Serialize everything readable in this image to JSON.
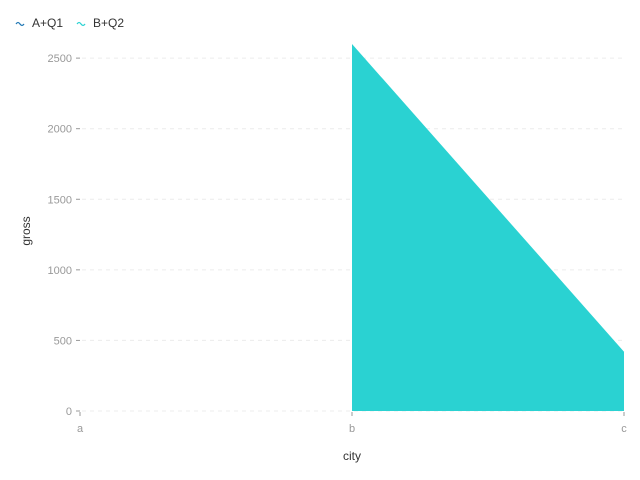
{
  "chart_data": {
    "type": "area",
    "categories": [
      "a",
      "b",
      "c"
    ],
    "series": [
      {
        "name": "A+Q1",
        "values": [
          null,
          null,
          null
        ],
        "color": "#1f77b4"
      },
      {
        "name": "B+Q2",
        "values": [
          null,
          2600,
          420
        ],
        "color": "#2ad2d2"
      }
    ],
    "xlabel": "city",
    "ylabel": "gross",
    "ylim": [
      0,
      2600
    ],
    "yticks": [
      0,
      500,
      1000,
      1500,
      2000,
      2500
    ],
    "grid": true,
    "legend": "top-left"
  }
}
